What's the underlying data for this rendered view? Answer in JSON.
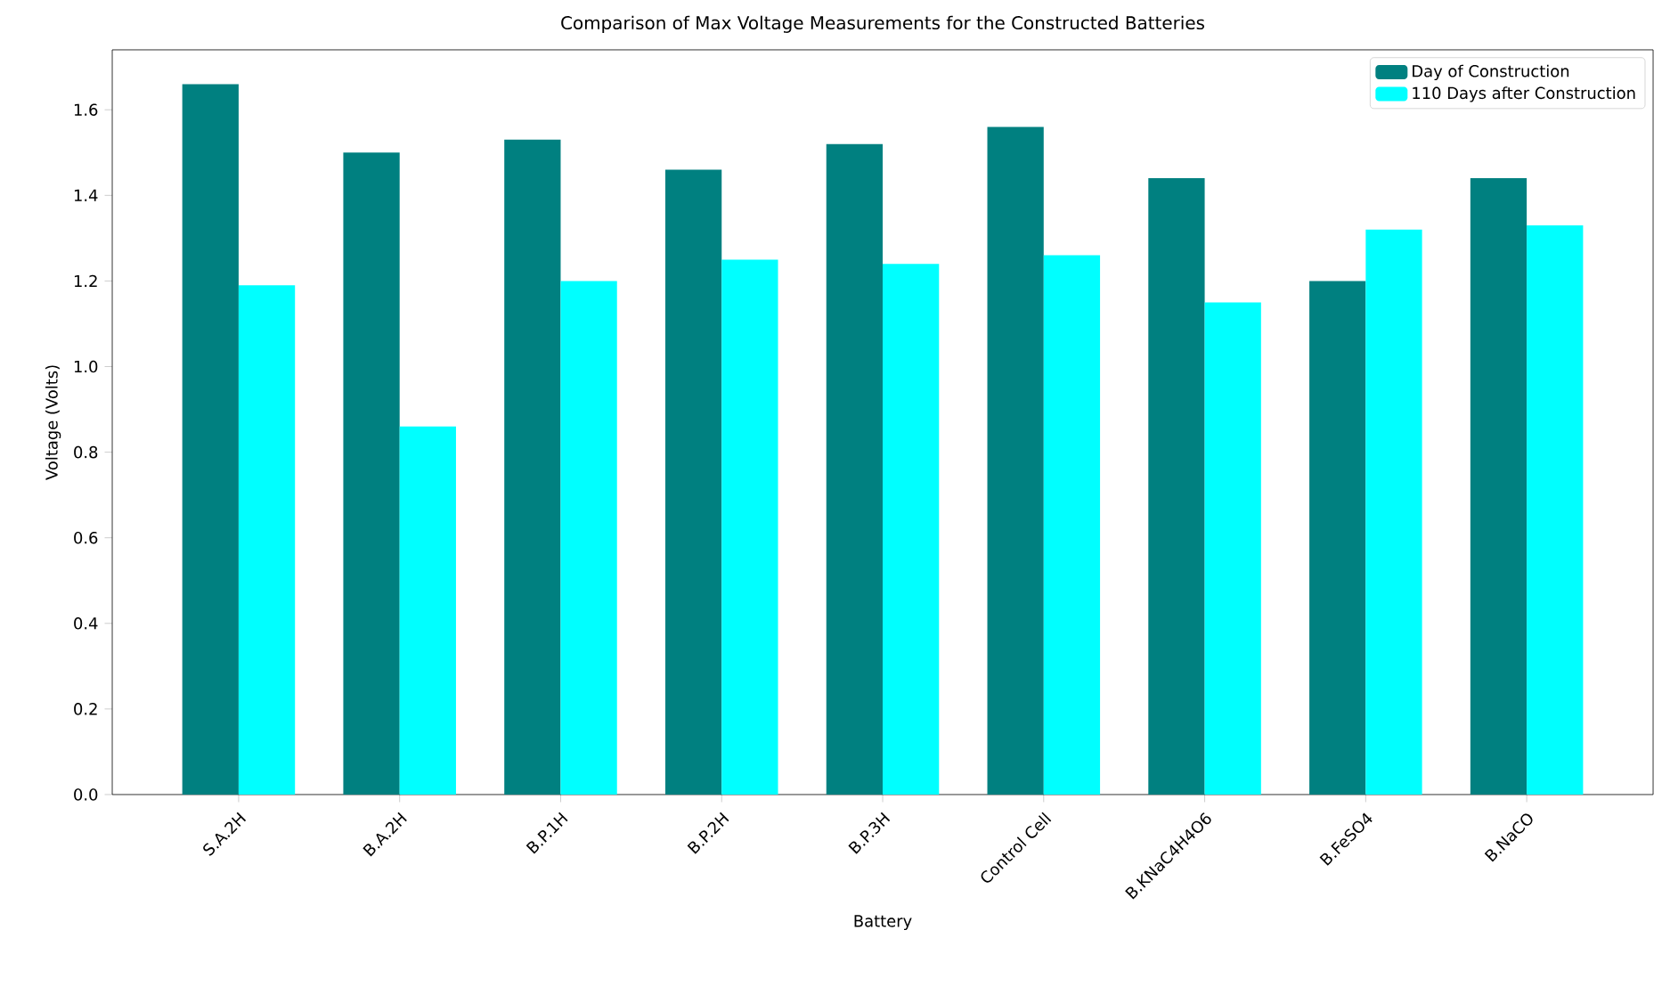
{
  "chart_data": {
    "type": "bar",
    "title": "Comparison of Max Voltage Measurements for the Constructed Batteries",
    "xlabel": "Battery",
    "ylabel": "Voltage (Volts)",
    "categories": [
      "S.A.2H",
      "B.A.2H",
      "B.P.1H",
      "B.P.2H",
      "B.P.3H",
      "Control Cell",
      "B.KNaC4H4O6",
      "B.FeSO4",
      "B.NaCO"
    ],
    "series": [
      {
        "name": "Day of Construction",
        "color": "#008080",
        "values": [
          1.66,
          1.5,
          1.53,
          1.46,
          1.52,
          1.56,
          1.44,
          1.2,
          1.44
        ]
      },
      {
        "name": "110 Days after Construction",
        "color": "#00ffff",
        "values": [
          1.19,
          0.86,
          1.2,
          1.25,
          1.24,
          1.26,
          1.15,
          1.32,
          1.33
        ]
      }
    ],
    "ylim": [
      0,
      1.74
    ],
    "yticks": [
      {
        "value": 0,
        "label": "0.0"
      },
      0.2,
      0.4,
      0.6,
      0.8,
      {
        "value": 1,
        "label": "1.0"
      },
      1.2,
      1.4,
      1.6
    ],
    "legend": "top right",
    "grid": false
  }
}
